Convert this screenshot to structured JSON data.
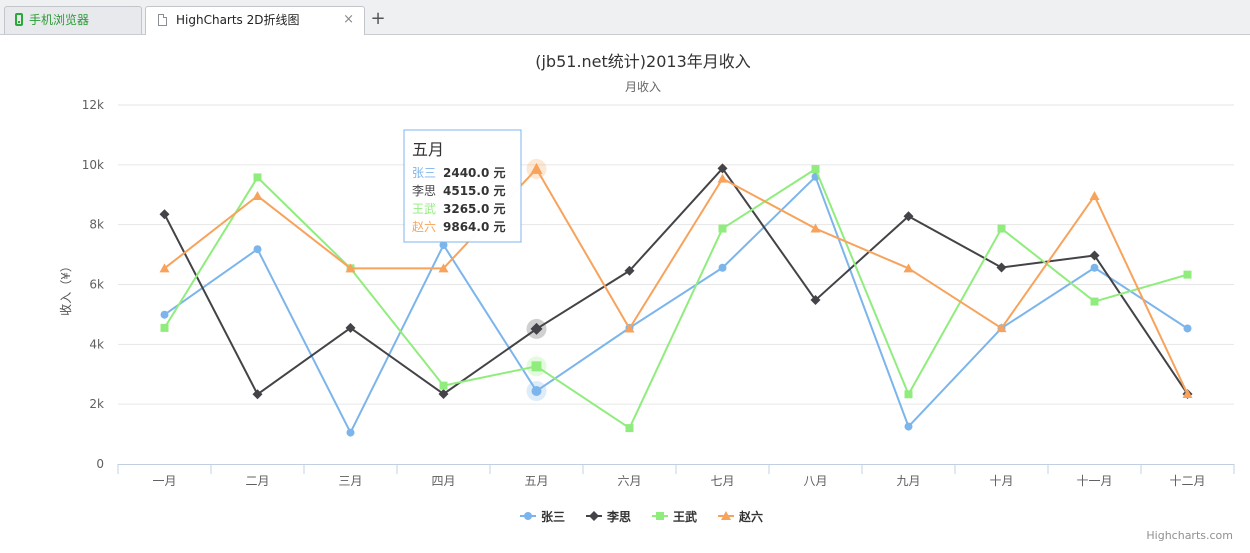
{
  "browser": {
    "tabs": [
      {
        "label": "手机浏览器",
        "icon": "phone-icon"
      },
      {
        "label": "HighCharts 2D折线图",
        "icon": "document-icon"
      }
    ],
    "close_symbol": "×",
    "new_tab_symbol": "+"
  },
  "chart_data": {
    "type": "line",
    "title": "(jb51.net统计)2013年月收入",
    "subtitle": "月收入",
    "ylabel": "收入（¥）",
    "ylim": [
      0,
      12000
    ],
    "yticks": [
      0,
      2000,
      4000,
      6000,
      8000,
      10000,
      12000
    ],
    "ytick_labels": [
      "0",
      "2k",
      "4k",
      "6k",
      "8k",
      "10k",
      "12k"
    ],
    "categories": [
      "一月",
      "二月",
      "三月",
      "四月",
      "五月",
      "六月",
      "七月",
      "八月",
      "九月",
      "十月",
      "十一月",
      "十二月"
    ],
    "series": [
      {
        "name": "张三",
        "color": "#7cb5ec",
        "marker": "circle",
        "values": [
          4990,
          7180,
          1050,
          7320,
          2440,
          4550,
          6560,
          9600,
          1250,
          4540,
          6560,
          4530
        ]
      },
      {
        "name": "李思",
        "color": "#434348",
        "marker": "diamond",
        "values": [
          8350,
          2330,
          4550,
          2340,
          4515,
          6460,
          9880,
          5480,
          8280,
          6570,
          6970,
          2340
        ]
      },
      {
        "name": "王武",
        "color": "#90ed7d",
        "marker": "square",
        "values": [
          4550,
          9580,
          6540,
          2620,
          3265,
          1200,
          7870,
          9860,
          2330,
          7870,
          5430,
          6330
        ]
      },
      {
        "name": "赵六",
        "color": "#f7a35c",
        "marker": "triangle",
        "values": [
          6540,
          8960,
          6540,
          6540,
          9864,
          4530,
          9540,
          7870,
          6540,
          4540,
          8960,
          2340
        ]
      }
    ],
    "grid": true,
    "legend": "bottom-center",
    "tooltip": {
      "category": "五月",
      "rows": [
        {
          "name": "张三",
          "value": "2440.0 元"
        },
        {
          "name": "李思",
          "value": "4515.0 元"
        },
        {
          "name": "王武",
          "value": "3265.0 元"
        },
        {
          "name": "赵六",
          "value": "9864.0 元"
        }
      ]
    },
    "credits": "Highcharts.com"
  }
}
